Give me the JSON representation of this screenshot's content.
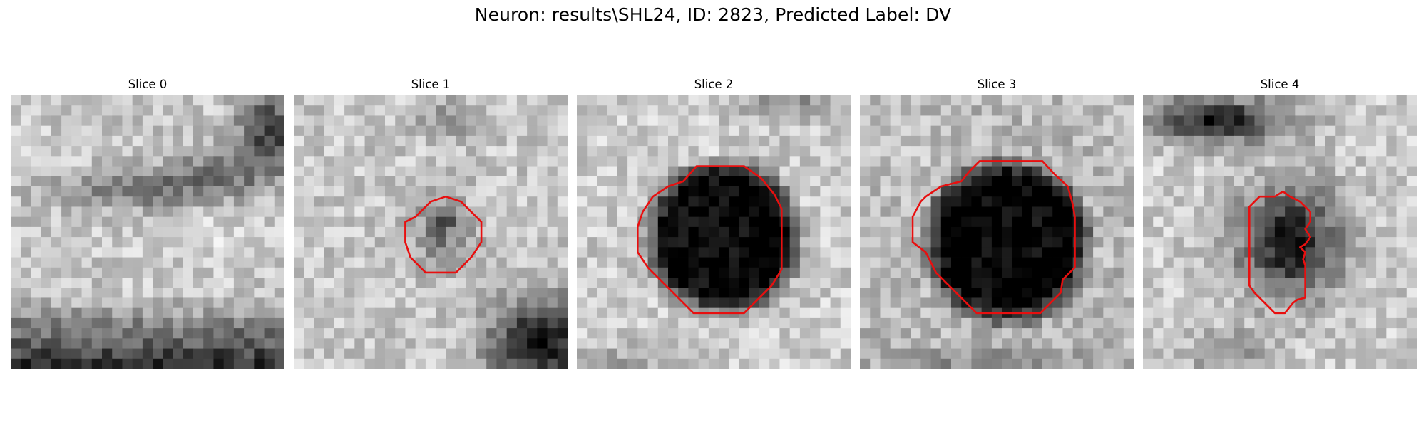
{
  "figure": {
    "title": "Neuron: results\\SHL24, ID: 2823, Predicted Label: DV"
  },
  "panels": [
    {
      "title": "Slice 0",
      "contour": "none"
    },
    {
      "title": "Slice 1",
      "contour": "small-octagon"
    },
    {
      "title": "Slice 2",
      "contour": "large-octagon"
    },
    {
      "title": "Slice 3",
      "contour": "large-octagon"
    },
    {
      "title": "Slice 4",
      "contour": "elongated-irregular"
    }
  ],
  "colors": {
    "contour": "#e80f0f",
    "background": "#ffffff",
    "colormap": "gray"
  }
}
